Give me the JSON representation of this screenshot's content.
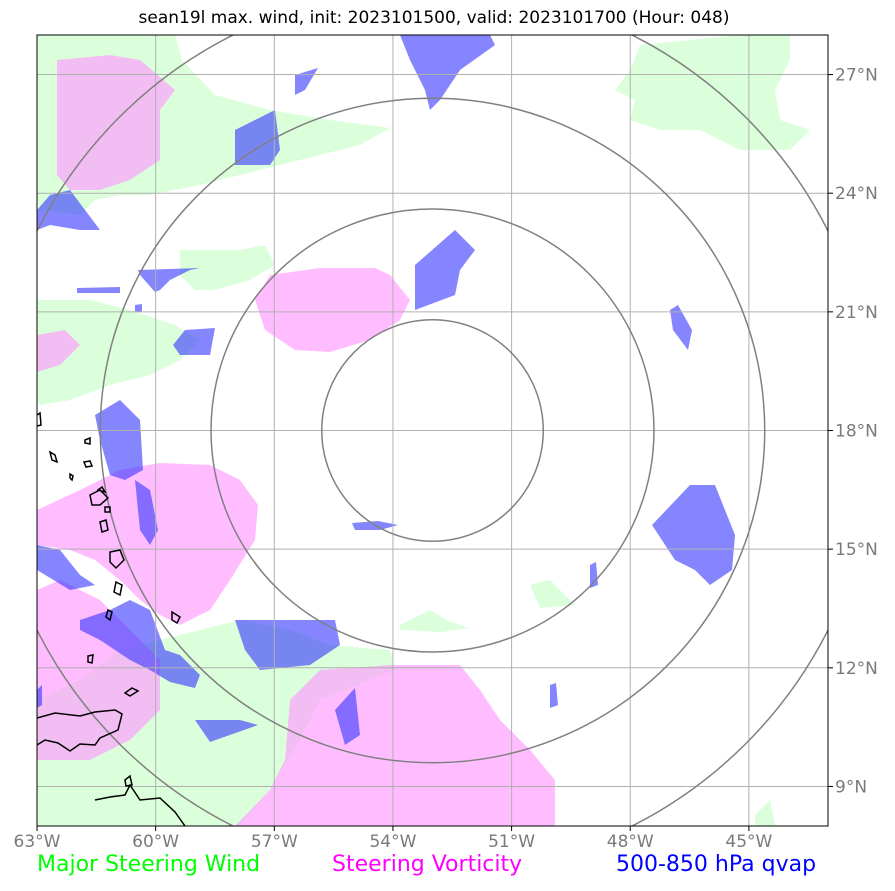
{
  "title": "sean19l max. wind, init: 2023101500, valid: 2023101700 (Hour: 048)",
  "map": {
    "lon_range": [
      -63,
      -43
    ],
    "lat_range": [
      8,
      28
    ],
    "storm_center": {
      "lon": -53,
      "lat": 18
    },
    "lon_ticks": [
      -63,
      -60,
      -57,
      -54,
      -51,
      -48,
      -45
    ],
    "lat_ticks": [
      9,
      12,
      15,
      18,
      21,
      24,
      27
    ],
    "lon_tick_labels": [
      "63°W",
      "60°W",
      "57°W",
      "54°W",
      "51°W",
      "48°W",
      "45°W"
    ],
    "lat_tick_labels": [
      "9°N",
      "12°N",
      "15°N",
      "18°N",
      "21°N",
      "24°N",
      "27°N"
    ],
    "range_rings_deg": [
      2.8,
      5.6,
      8.4,
      11.2
    ],
    "gridlines": true,
    "colors": {
      "wind": "#ccffcc",
      "vorticity": "#ff99ff",
      "qvap": "#0000ff",
      "rings": "#808080",
      "grid": "#b0b0b0",
      "coast": "#000000"
    }
  },
  "legend": {
    "wind": {
      "label": "Major Steering Wind",
      "color": "#00ff00"
    },
    "vorticity": {
      "label": "Steering Vorticity",
      "color": "#ff00ff"
    },
    "qvap": {
      "label": "500-850 hPa qvap",
      "color": "#0000ff"
    }
  }
}
